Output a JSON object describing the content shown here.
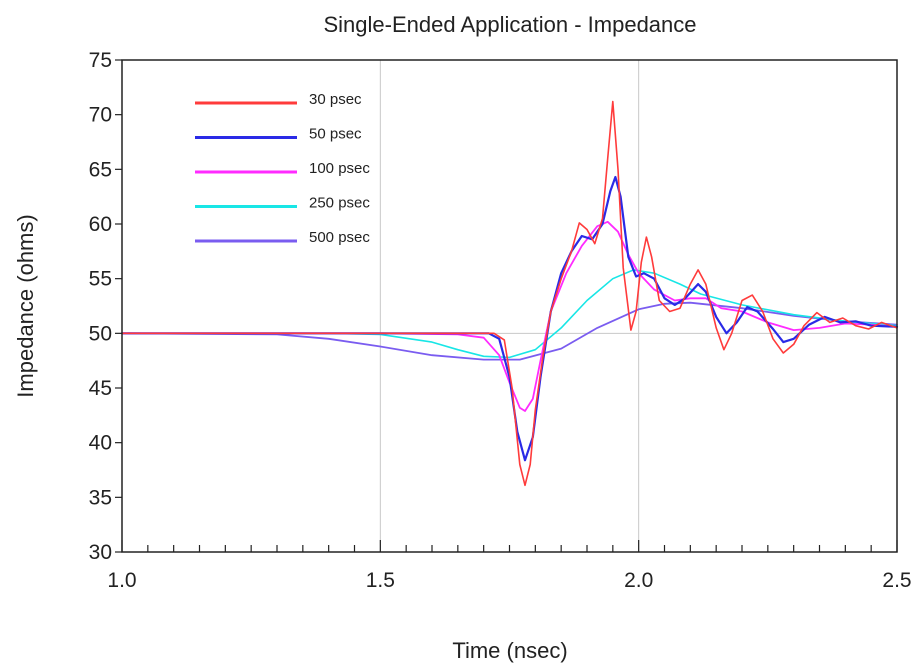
{
  "chart_data": {
    "type": "line",
    "title": "Single-Ended Application - Impedance",
    "xlabel": "Time (nsec)",
    "ylabel": "Impedance (ohms)",
    "xlim": [
      1.0,
      2.5
    ],
    "ylim": [
      30,
      75
    ],
    "x_ticks": [
      1.0,
      1.5,
      2.0,
      2.5
    ],
    "x_tick_labels": [
      "1.0",
      "1.5",
      "2.0",
      "2.5"
    ],
    "x_minor_step": 0.05,
    "y_ticks": [
      30,
      35,
      40,
      45,
      50,
      55,
      60,
      65,
      70,
      75
    ],
    "y_tick_labels": [
      "30",
      "35",
      "40",
      "45",
      "50",
      "55",
      "60",
      "65",
      "70",
      "75"
    ],
    "grid": {
      "x": [
        1.5,
        2.0
      ],
      "y": [
        50
      ]
    },
    "legend_position": "top-left",
    "series": [
      {
        "name": "30 psec",
        "color": "#ff3b3b",
        "points": [
          [
            1.0,
            50
          ],
          [
            1.5,
            50
          ],
          [
            1.72,
            50
          ],
          [
            1.74,
            49.4
          ],
          [
            1.755,
            45
          ],
          [
            1.77,
            38
          ],
          [
            1.78,
            36.1
          ],
          [
            1.79,
            38
          ],
          [
            1.8,
            43
          ],
          [
            1.815,
            48
          ],
          [
            1.83,
            52
          ],
          [
            1.85,
            55
          ],
          [
            1.87,
            57.5
          ],
          [
            1.885,
            60.1
          ],
          [
            1.9,
            59.5
          ],
          [
            1.915,
            58.2
          ],
          [
            1.93,
            60.5
          ],
          [
            1.94,
            66
          ],
          [
            1.95,
            71.2
          ],
          [
            1.96,
            65
          ],
          [
            1.97,
            56
          ],
          [
            1.985,
            50.3
          ],
          [
            1.995,
            52
          ],
          [
            2.005,
            56.5
          ],
          [
            2.015,
            58.8
          ],
          [
            2.025,
            57
          ],
          [
            2.04,
            53
          ],
          [
            2.06,
            52
          ],
          [
            2.08,
            52.3
          ],
          [
            2.1,
            54.5
          ],
          [
            2.115,
            55.8
          ],
          [
            2.13,
            54.5
          ],
          [
            2.15,
            50.5
          ],
          [
            2.165,
            48.5
          ],
          [
            2.18,
            50
          ],
          [
            2.2,
            53
          ],
          [
            2.22,
            53.5
          ],
          [
            2.24,
            52
          ],
          [
            2.26,
            49.5
          ],
          [
            2.28,
            48.2
          ],
          [
            2.3,
            49
          ],
          [
            2.32,
            50.7
          ],
          [
            2.345,
            51.9
          ],
          [
            2.37,
            51
          ],
          [
            2.395,
            51.4
          ],
          [
            2.42,
            50.7
          ],
          [
            2.445,
            50.4
          ],
          [
            2.47,
            51
          ],
          [
            2.5,
            50.5
          ]
        ]
      },
      {
        "name": "50 psec",
        "color": "#2a2ae6",
        "points": [
          [
            1.0,
            50
          ],
          [
            1.5,
            50
          ],
          [
            1.71,
            50
          ],
          [
            1.73,
            49.5
          ],
          [
            1.75,
            46
          ],
          [
            1.765,
            41
          ],
          [
            1.78,
            38.4
          ],
          [
            1.795,
            40.5
          ],
          [
            1.81,
            46
          ],
          [
            1.83,
            52
          ],
          [
            1.85,
            55.5
          ],
          [
            1.87,
            57.5
          ],
          [
            1.89,
            58.9
          ],
          [
            1.91,
            58.6
          ],
          [
            1.93,
            60
          ],
          [
            1.945,
            63
          ],
          [
            1.955,
            64.3
          ],
          [
            1.965,
            62.5
          ],
          [
            1.98,
            57
          ],
          [
            1.995,
            55.2
          ],
          [
            2.01,
            55.5
          ],
          [
            2.03,
            55
          ],
          [
            2.05,
            53.2
          ],
          [
            2.07,
            52.6
          ],
          [
            2.09,
            53.2
          ],
          [
            2.115,
            54.5
          ],
          [
            2.13,
            53.8
          ],
          [
            2.15,
            51.5
          ],
          [
            2.17,
            50
          ],
          [
            2.19,
            51
          ],
          [
            2.21,
            52.4
          ],
          [
            2.23,
            52
          ],
          [
            2.26,
            50.4
          ],
          [
            2.28,
            49.2
          ],
          [
            2.3,
            49.5
          ],
          [
            2.33,
            50.8
          ],
          [
            2.36,
            51.5
          ],
          [
            2.39,
            51
          ],
          [
            2.42,
            51.1
          ],
          [
            2.45,
            50.7
          ],
          [
            2.5,
            50.6
          ]
        ]
      },
      {
        "name": "100 psec",
        "color": "#ff2bff",
        "points": [
          [
            1.0,
            50
          ],
          [
            1.5,
            50
          ],
          [
            1.65,
            49.9
          ],
          [
            1.7,
            49.6
          ],
          [
            1.73,
            48
          ],
          [
            1.75,
            45.5
          ],
          [
            1.77,
            43.2
          ],
          [
            1.78,
            42.9
          ],
          [
            1.795,
            44
          ],
          [
            1.81,
            47.5
          ],
          [
            1.83,
            52
          ],
          [
            1.86,
            55.5
          ],
          [
            1.89,
            58
          ],
          [
            1.92,
            59.8
          ],
          [
            1.94,
            60.2
          ],
          [
            1.96,
            59.3
          ],
          [
            1.98,
            57.2
          ],
          [
            2.0,
            55.5
          ],
          [
            2.03,
            54
          ],
          [
            2.07,
            53
          ],
          [
            2.1,
            53.2
          ],
          [
            2.13,
            53.2
          ],
          [
            2.16,
            52.3
          ],
          [
            2.2,
            52
          ],
          [
            2.25,
            51
          ],
          [
            2.3,
            50.3
          ],
          [
            2.35,
            50.5
          ],
          [
            2.4,
            50.9
          ],
          [
            2.45,
            50.8
          ],
          [
            2.5,
            50.6
          ]
        ]
      },
      {
        "name": "250 psec",
        "color": "#18e6e6",
        "points": [
          [
            1.0,
            50
          ],
          [
            1.2,
            50
          ],
          [
            1.4,
            50
          ],
          [
            1.5,
            49.9
          ],
          [
            1.6,
            49.2
          ],
          [
            1.65,
            48.5
          ],
          [
            1.7,
            47.9
          ],
          [
            1.75,
            47.8
          ],
          [
            1.8,
            48.5
          ],
          [
            1.85,
            50.5
          ],
          [
            1.9,
            53
          ],
          [
            1.95,
            55
          ],
          [
            1.99,
            55.8
          ],
          [
            2.03,
            55.5
          ],
          [
            2.08,
            54.5
          ],
          [
            2.12,
            53.6
          ],
          [
            2.2,
            52.6
          ],
          [
            2.3,
            51.7
          ],
          [
            2.4,
            51.1
          ],
          [
            2.5,
            50.7
          ]
        ]
      },
      {
        "name": "500 psec",
        "color": "#7a5cf0",
        "points": [
          [
            1.0,
            50
          ],
          [
            1.3,
            49.9
          ],
          [
            1.4,
            49.5
          ],
          [
            1.5,
            48.8
          ],
          [
            1.6,
            48
          ],
          [
            1.7,
            47.6
          ],
          [
            1.77,
            47.6
          ],
          [
            1.85,
            48.6
          ],
          [
            1.92,
            50.5
          ],
          [
            2.0,
            52.2
          ],
          [
            2.05,
            52.7
          ],
          [
            2.1,
            52.8
          ],
          [
            2.2,
            52.3
          ],
          [
            2.3,
            51.6
          ],
          [
            2.4,
            51.1
          ],
          [
            2.5,
            50.8
          ]
        ]
      }
    ]
  }
}
